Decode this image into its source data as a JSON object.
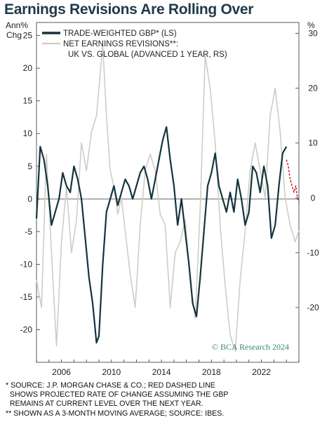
{
  "title": "Earnings Revisions Are Rolling Over",
  "footnotes": [
    "* SOURCE: J.P. MORGAN CHASE & CO.; RED DASHED LINE",
    "  SHOWS PROJECTED RATE OF CHANGE ASSUMING THE GBP",
    "  REMAINS AT CURRENT LEVEL OVER THE NEXT YEAR.",
    "** SHOWN AS A 3-MONTH MOVING AVERAGE; SOURCE: IBES."
  ],
  "colors": {
    "gbp": "#14333d",
    "revisions": "#cfccc6",
    "projection": "#c1121f",
    "title": "#1f3a48",
    "watermark": "#3a8a6a"
  },
  "chart_data": {
    "type": "line",
    "watermark": "© BCA Research 2024",
    "left_axis": {
      "unit_label_line1": "Ann%",
      "unit_label_line2": "Chg",
      "range": [
        -25,
        27
      ],
      "ticks": [
        -20,
        -15,
        -10,
        -5,
        0,
        5,
        10,
        15,
        20,
        25
      ]
    },
    "right_axis": {
      "unit_label": "%",
      "range": [
        -30,
        32
      ],
      "ticks": [
        -20,
        -10,
        0,
        10,
        20,
        30
      ]
    },
    "x_axis": {
      "range": [
        2004.0,
        2025.0
      ],
      "ticks": [
        2006,
        2010,
        2014,
        2018,
        2022
      ]
    },
    "legend": {
      "position": "top-left",
      "entries": [
        {
          "label": "TRADE-WEIGHTED GBP* (LS)",
          "series": "gbp"
        },
        {
          "label": "NET EARNINGS REVISIONS**:",
          "series": "revisions"
        },
        {
          "label": "UK VS. GLOBAL (ADVANCED 1 YEAR, RS)",
          "series": "revisions"
        }
      ]
    },
    "series": [
      {
        "key": "gbp",
        "axis": "left",
        "x": [
          2004.0,
          2004.3,
          2004.6,
          2004.9,
          2005.2,
          2005.5,
          2005.8,
          2006.1,
          2006.4,
          2006.7,
          2007.0,
          2007.3,
          2007.6,
          2007.9,
          2008.2,
          2008.5,
          2008.8,
          2009.0,
          2009.3,
          2009.6,
          2009.9,
          2010.2,
          2010.5,
          2010.8,
          2011.1,
          2011.4,
          2011.7,
          2012.0,
          2012.3,
          2012.6,
          2012.9,
          2013.2,
          2013.5,
          2013.8,
          2014.1,
          2014.4,
          2014.7,
          2015.0,
          2015.3,
          2015.6,
          2015.9,
          2016.2,
          2016.5,
          2016.8,
          2017.1,
          2017.4,
          2017.7,
          2018.0,
          2018.3,
          2018.6,
          2018.9,
          2019.2,
          2019.5,
          2019.8,
          2020.1,
          2020.4,
          2020.7,
          2021.0,
          2021.3,
          2021.6,
          2021.9,
          2022.2,
          2022.5,
          2022.8,
          2023.1,
          2023.4,
          2023.7,
          2024.0
        ],
        "values": [
          -3,
          8,
          6,
          2,
          -4,
          -2,
          0,
          4,
          2,
          1,
          5,
          3,
          0,
          -6,
          -12,
          -16,
          -22,
          -21,
          -10,
          -2,
          0,
          2,
          -1,
          1,
          3,
          2,
          0,
          2,
          4,
          5,
          3,
          0,
          3,
          6,
          9,
          11,
          6,
          2,
          -4,
          0,
          -5,
          -10,
          -16,
          -18,
          -12,
          -5,
          2,
          4,
          7,
          2,
          0,
          -2,
          1,
          -2,
          3,
          0,
          -4,
          -2,
          5,
          4,
          1,
          5,
          2,
          -6,
          -4,
          2,
          7,
          8
        ]
      },
      {
        "key": "revisions",
        "axis": "right",
        "x": [
          2004.0,
          2004.4,
          2004.8,
          2005.2,
          2005.6,
          2006.0,
          2006.4,
          2006.8,
          2007.2,
          2007.6,
          2008.0,
          2008.4,
          2008.8,
          2009.0,
          2009.3,
          2009.6,
          2009.9,
          2010.2,
          2010.5,
          2010.8,
          2011.1,
          2011.5,
          2011.9,
          2012.3,
          2012.7,
          2013.1,
          2013.5,
          2013.9,
          2014.3,
          2014.7,
          2015.1,
          2015.5,
          2015.9,
          2016.3,
          2016.7,
          2017.1,
          2017.5,
          2017.9,
          2018.3,
          2018.7,
          2019.1,
          2019.5,
          2019.9,
          2020.3,
          2020.7,
          2021.1,
          2021.5,
          2021.9,
          2022.3,
          2022.7,
          2023.1,
          2023.5,
          2023.9,
          2024.3,
          2024.7,
          2025.0
        ],
        "values": [
          -15,
          -20,
          8,
          -10,
          -27,
          -8,
          2,
          -10,
          -4,
          10,
          5,
          12,
          15,
          20,
          28,
          15,
          5,
          2,
          -3,
          0,
          -6,
          -14,
          -20,
          -5,
          5,
          8,
          5,
          -3,
          -5,
          -20,
          -10,
          -8,
          -4,
          -15,
          -22,
          -2,
          26,
          20,
          10,
          -5,
          -16,
          -25,
          -28,
          -15,
          -6,
          5,
          10,
          5,
          0,
          15,
          20,
          12,
          0,
          -5,
          -8,
          -6
        ]
      },
      {
        "key": "projection",
        "axis": "left",
        "style": "dashed",
        "x": [
          2024.0,
          2024.15,
          2024.3,
          2024.45,
          2024.6,
          2024.75,
          2024.9,
          2025.0
        ],
        "values": [
          6,
          5,
          3,
          2,
          1,
          2,
          0,
          -0.5
        ]
      }
    ]
  }
}
